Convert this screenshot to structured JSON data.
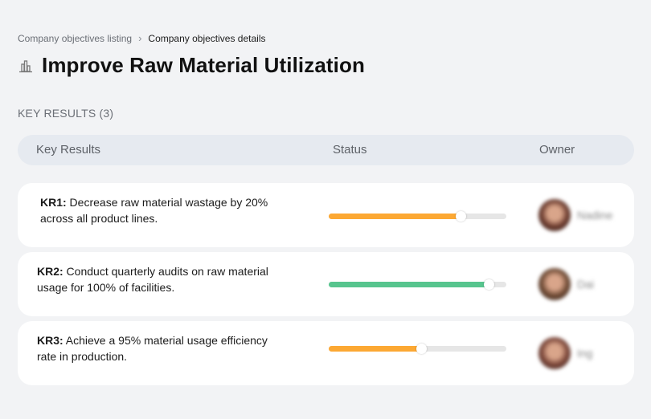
{
  "breadcrumb": {
    "items": [
      "Company objectives listing",
      "Company objectives details"
    ],
    "separator": "›"
  },
  "header": {
    "icon": "chart-building-icon",
    "title": "Improve Raw Material Utilization"
  },
  "section": {
    "label": "KEY RESULTS (3)"
  },
  "table": {
    "columns": [
      "Key Results",
      "Status",
      "Owner"
    ],
    "rows": [
      {
        "id": "KR1:",
        "text": " Decrease raw material wastage by 20% across all product lines.",
        "progress": 74,
        "color": "#fca833",
        "owner": "Nadine",
        "avatar_color": "#6b3b2e"
      },
      {
        "id": "KR2:",
        "text": " Conduct quarterly audits on raw material usage for 100% of facilities.",
        "progress": 90,
        "color": "#57c58e",
        "owner": "Dai",
        "avatar_color": "#6e4a34"
      },
      {
        "id": "KR3:",
        "text": " Achieve a 95% material usage efficiency rate in production.",
        "progress": 52,
        "color": "#fca833",
        "owner": "Ing",
        "avatar_color": "#7a4538"
      }
    ]
  }
}
